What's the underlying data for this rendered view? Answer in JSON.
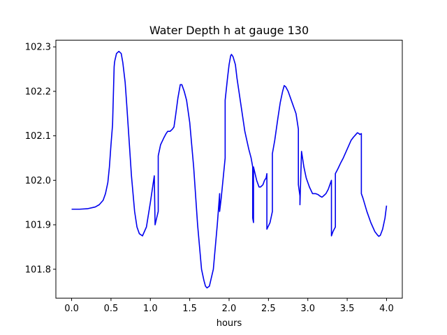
{
  "chart_data": {
    "type": "line",
    "title": "Water Depth h at gauge 130",
    "xlabel": "hours",
    "ylabel": "",
    "xlim": [
      -0.2,
      4.2
    ],
    "ylim": [
      101.735,
      102.315
    ],
    "xticks": [
      0.0,
      0.5,
      1.0,
      1.5,
      2.0,
      2.5,
      3.0,
      3.5,
      4.0
    ],
    "xtick_labels": [
      "0.0",
      "0.5",
      "1.0",
      "1.5",
      "2.0",
      "2.5",
      "3.0",
      "3.5",
      "4.0"
    ],
    "yticks": [
      101.8,
      101.9,
      102.0,
      102.1,
      102.2,
      102.3
    ],
    "ytick_labels": [
      "101.8",
      "101.9",
      "102.0",
      "102.1",
      "102.2",
      "102.3"
    ],
    "grid": false,
    "legend": "none",
    "series": [
      {
        "color": "#0000ee",
        "x": [
          0.0,
          0.1,
          0.2,
          0.3,
          0.35,
          0.4,
          0.43,
          0.46,
          0.48,
          0.5,
          0.52,
          0.54,
          0.545,
          0.55,
          0.57,
          0.6,
          0.63,
          0.65,
          0.68,
          0.7,
          0.73,
          0.76,
          0.8,
          0.83,
          0.86,
          0.9,
          0.95,
          1.0,
          1.05,
          1.06,
          1.08,
          1.1,
          1.1,
          1.13,
          1.17,
          1.2,
          1.22,
          1.25,
          1.28,
          1.3,
          1.32,
          1.35,
          1.38,
          1.4,
          1.43,
          1.46,
          1.5,
          1.55,
          1.6,
          1.65,
          1.68,
          1.7,
          1.72,
          1.75,
          1.8,
          1.85,
          1.88,
          1.88,
          1.9,
          1.95,
          1.95,
          1.98,
          2.0,
          2.02,
          2.03,
          2.05,
          2.08,
          2.1,
          2.15,
          2.2,
          2.25,
          2.28,
          2.3,
          2.3,
          2.31,
          2.31,
          2.33,
          2.35,
          2.38,
          2.4,
          2.43,
          2.45,
          2.47,
          2.48,
          2.48,
          2.52,
          2.55,
          2.55,
          2.58,
          2.62,
          2.65,
          2.68,
          2.7,
          2.72,
          2.75,
          2.8,
          2.85,
          2.88,
          2.88,
          2.9,
          2.9,
          2.92,
          2.95,
          2.98,
          3.0,
          3.02,
          3.06,
          3.1,
          3.13,
          3.15,
          3.18,
          3.2,
          3.23,
          3.26,
          3.28,
          3.3,
          3.3,
          3.32,
          3.35,
          3.35,
          3.38,
          3.42,
          3.45,
          3.5,
          3.55,
          3.58,
          3.62,
          3.63,
          3.65,
          3.66,
          3.68,
          3.68,
          3.7,
          3.75,
          3.8,
          3.85,
          3.88,
          3.9,
          3.92,
          3.95,
          3.98,
          4.0
        ],
        "y": [
          101.935,
          101.935,
          101.936,
          101.94,
          101.945,
          101.955,
          101.97,
          101.995,
          102.03,
          102.08,
          102.125,
          102.255,
          102.265,
          102.27,
          102.285,
          102.29,
          102.285,
          102.265,
          102.22,
          102.17,
          102.09,
          102.01,
          101.93,
          101.895,
          101.88,
          101.875,
          101.895,
          101.95,
          102.01,
          101.9,
          101.915,
          101.93,
          102.055,
          102.08,
          102.095,
          102.105,
          102.11,
          102.11,
          102.115,
          102.12,
          102.145,
          102.185,
          102.215,
          102.215,
          102.2,
          102.18,
          102.13,
          102.03,
          101.9,
          101.8,
          101.775,
          101.762,
          101.758,
          101.762,
          101.8,
          101.9,
          101.97,
          101.93,
          101.96,
          102.05,
          102.18,
          102.23,
          102.26,
          102.28,
          102.283,
          102.278,
          102.26,
          102.23,
          102.17,
          102.11,
          102.07,
          102.05,
          102.03,
          101.915,
          101.905,
          102.03,
          102.015,
          102.0,
          101.985,
          101.985,
          101.99,
          102.0,
          102.005,
          102.015,
          101.89,
          101.905,
          101.93,
          102.06,
          102.09,
          102.14,
          102.175,
          102.2,
          102.213,
          102.21,
          102.2,
          102.175,
          102.15,
          102.115,
          101.99,
          101.965,
          101.945,
          102.065,
          102.03,
          102.005,
          101.995,
          101.985,
          101.97,
          101.97,
          101.968,
          101.965,
          101.962,
          101.965,
          101.97,
          101.98,
          101.99,
          102.0,
          101.875,
          101.885,
          101.895,
          102.015,
          102.025,
          102.04,
          102.05,
          102.07,
          102.09,
          102.097,
          102.105,
          102.107,
          102.105,
          102.103,
          102.105,
          101.97,
          101.96,
          101.93,
          101.905,
          101.885,
          101.878,
          101.874,
          101.876,
          101.89,
          101.915,
          101.943
        ]
      }
    ]
  }
}
